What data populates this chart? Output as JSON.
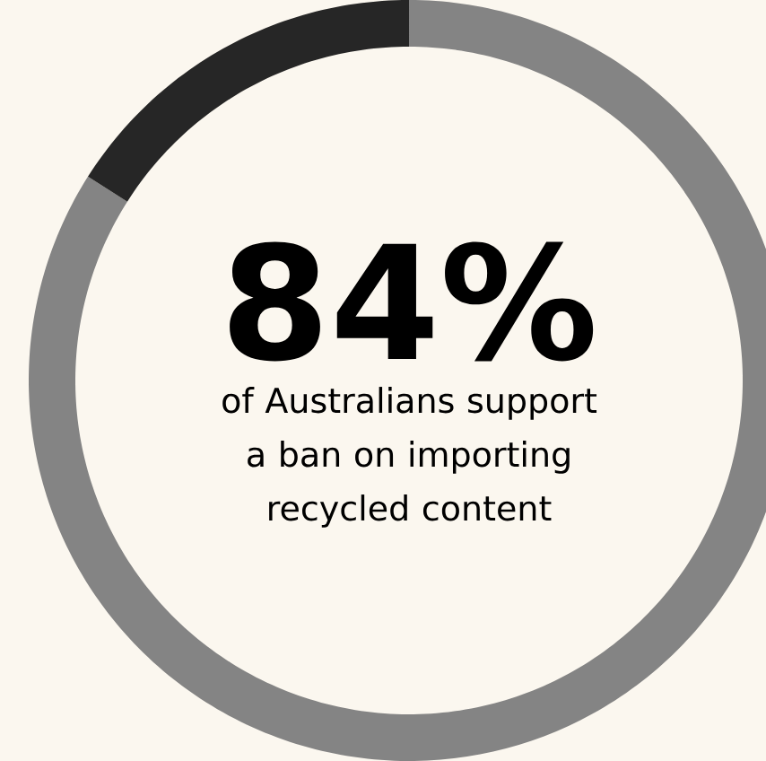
{
  "chart_data": {
    "type": "donut",
    "categories": [
      null,
      null
    ],
    "values": [
      84,
      16
    ],
    "colors": [
      "#848484",
      "#262626"
    ],
    "value_labels": [
      "84%",
      null
    ],
    "annotations": [
      "of Australians support a ban on importing recycled content"
    ]
  }
}
